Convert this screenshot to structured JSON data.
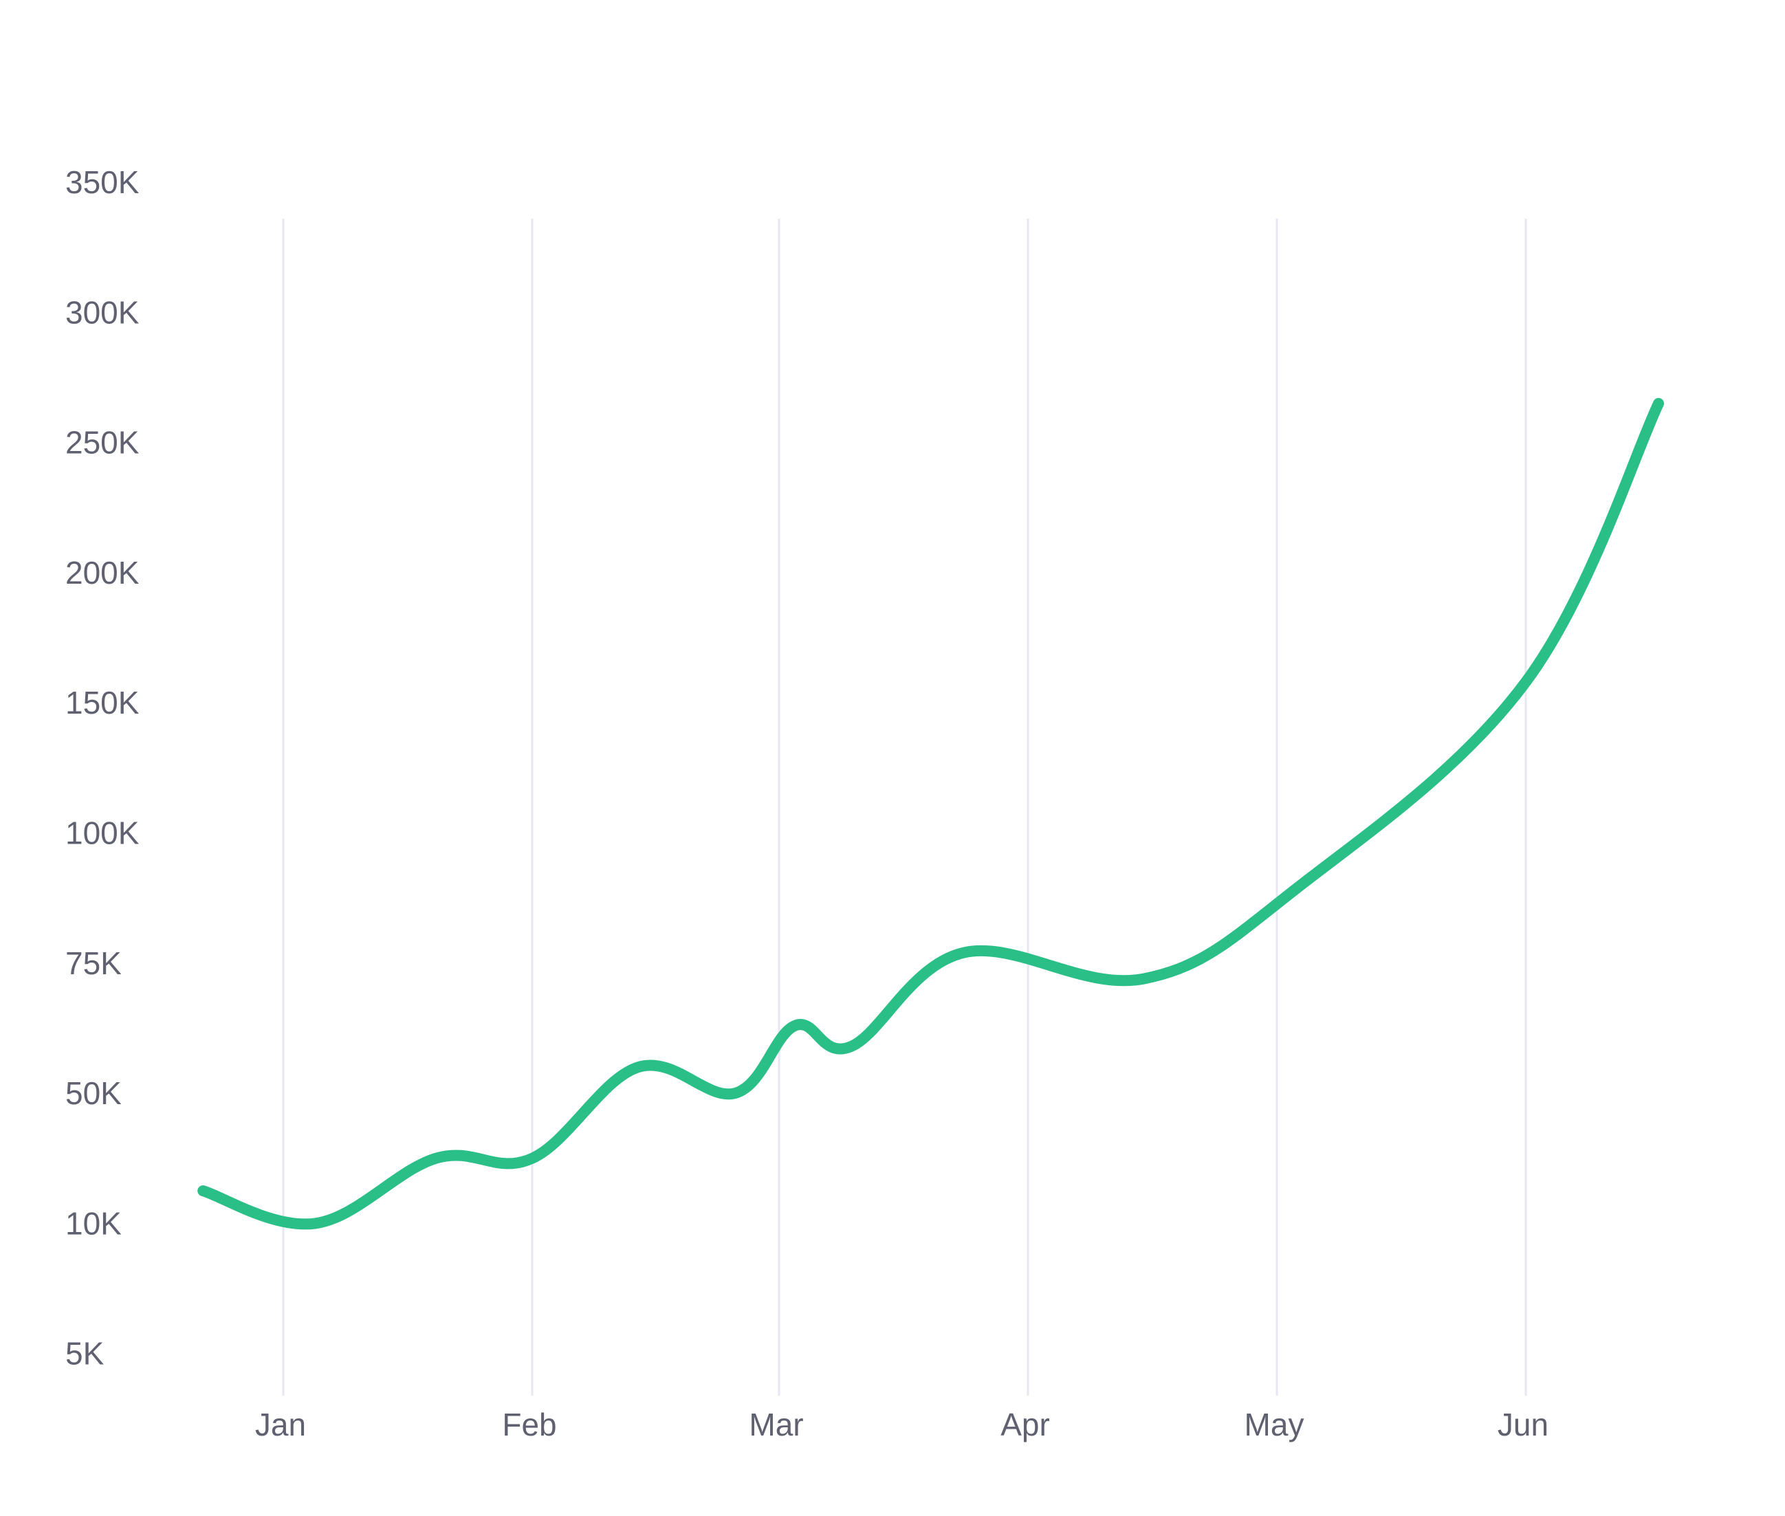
{
  "colors": {
    "line": "#2bbf88",
    "grid": "#e6e7f2",
    "tick_text": "#5f6170",
    "background": "#ffffff"
  },
  "chart_data": {
    "type": "line",
    "title": "",
    "xlabel": "",
    "ylabel": "",
    "grid": "vertical",
    "legend": "none",
    "x_ticks": [
      "Jan",
      "Feb",
      "Mar",
      "Apr",
      "May",
      "Jun"
    ],
    "y_ticks": [
      "5K",
      "10K",
      "50K",
      "75K",
      "100K",
      "150K",
      "200K",
      "250K",
      "300K",
      "350K"
    ],
    "series": [
      {
        "values": [
          {
            "x": "Dec 22",
            "y": 20000
          },
          {
            "x": "Jan 5",
            "y": 10000
          },
          {
            "x": "Jan 20",
            "y": 30000
          },
          {
            "x": "Feb 1",
            "y": 30000
          },
          {
            "x": "Feb 13",
            "y": 55000
          },
          {
            "x": "Feb 24",
            "y": 50000
          },
          {
            "x": "Mar 3",
            "y": 63000
          },
          {
            "x": "Mar 10",
            "y": 59000
          },
          {
            "x": "Mar 24",
            "y": 77000
          },
          {
            "x": "Apr 15",
            "y": 72000
          },
          {
            "x": "May 4",
            "y": 90000
          },
          {
            "x": "Jun 1",
            "y": 158000
          },
          {
            "x": "Jun 17",
            "y": 265000
          }
        ]
      }
    ]
  }
}
